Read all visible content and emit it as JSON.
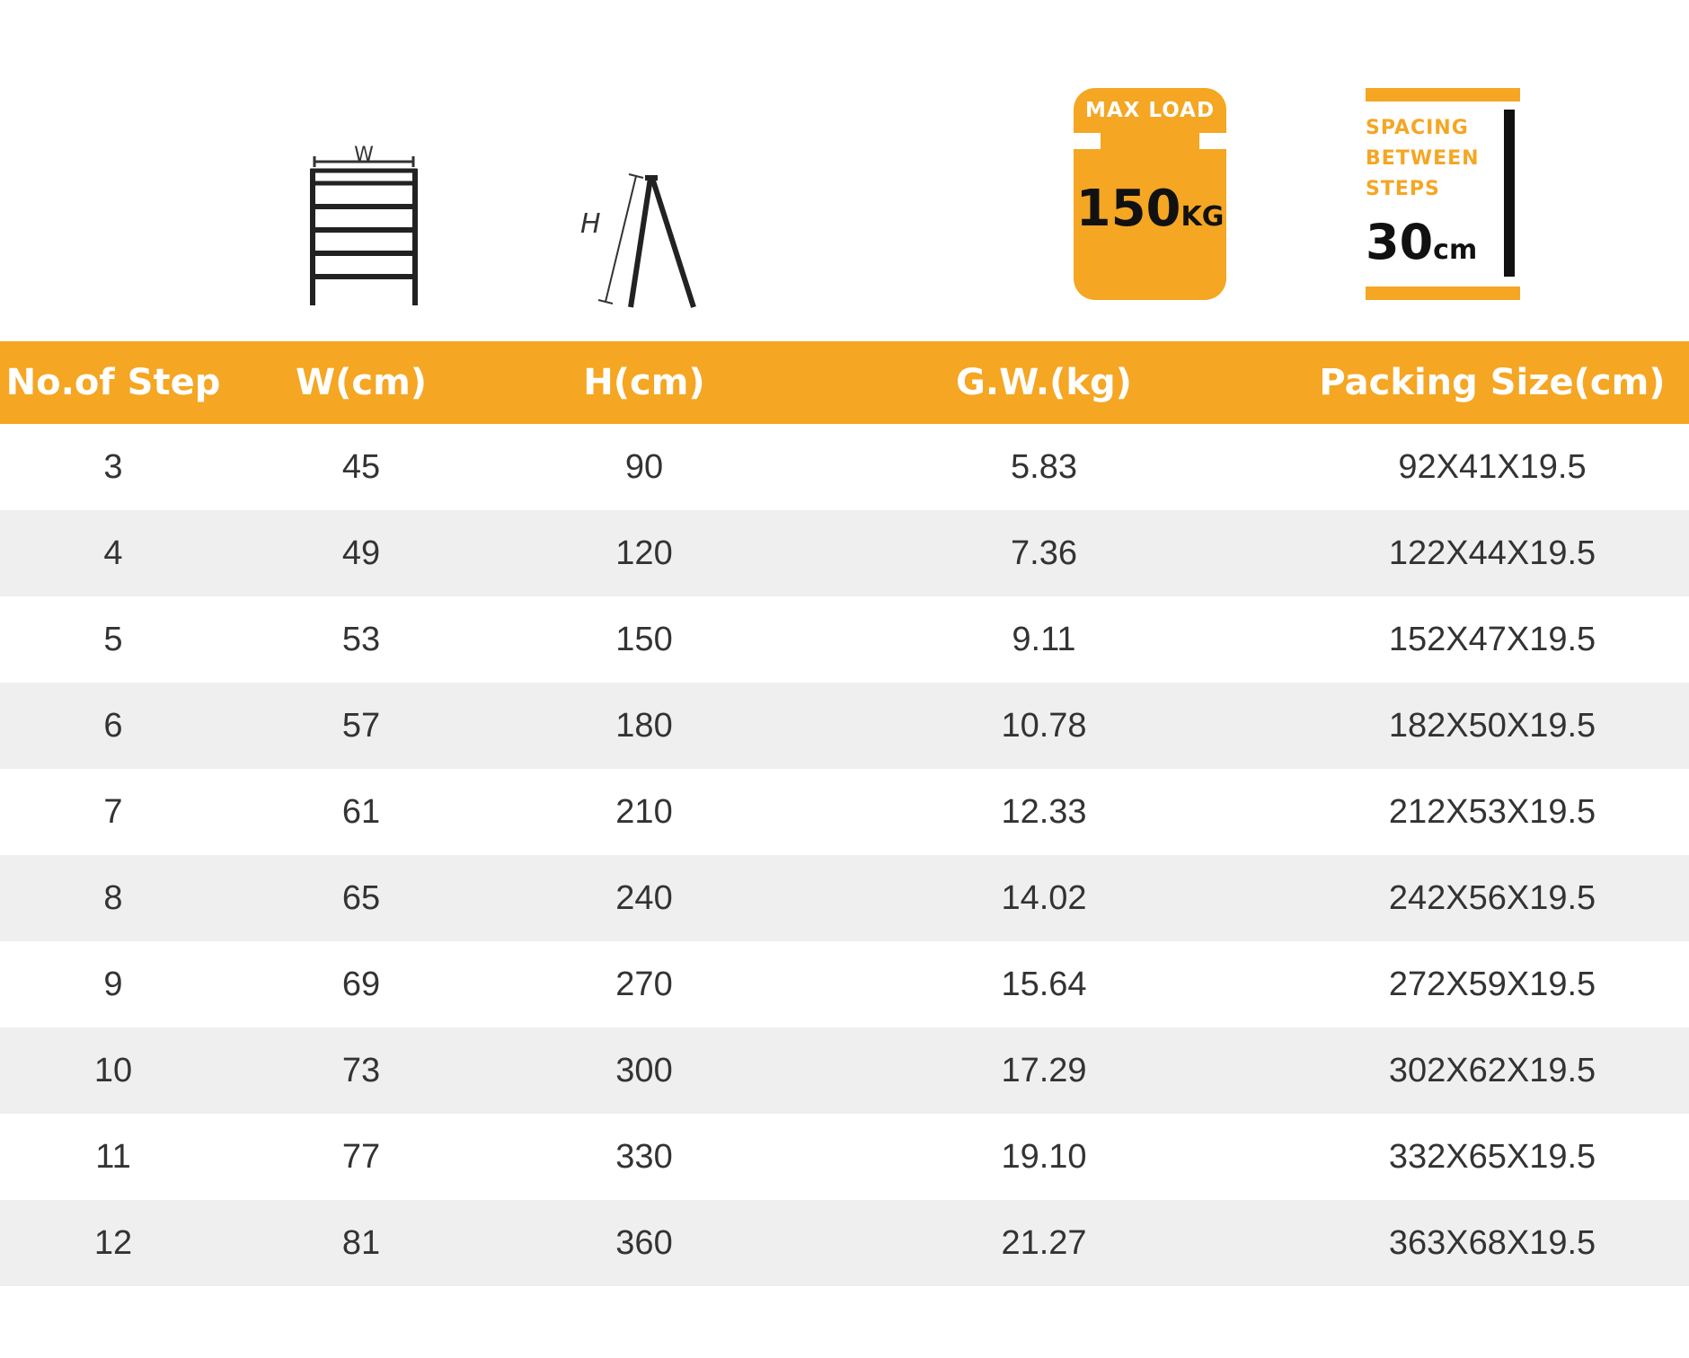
{
  "icons": {
    "width_letter": "W",
    "height_letter": "H"
  },
  "max_load": {
    "title": "MAX LOAD",
    "value": "150",
    "unit": "KG"
  },
  "spacing": {
    "line1": "SPACING",
    "line2": "BETWEEN",
    "line3": "STEPS",
    "value": "30",
    "unit": "cm"
  },
  "table": {
    "headers": [
      "No.of Step",
      "W(cm)",
      "H(cm)",
      "G.W.(kg)",
      "Packing Size(cm)"
    ],
    "rows": [
      [
        "3",
        "45",
        "90",
        "5.83",
        "92X41X19.5"
      ],
      [
        "4",
        "49",
        "120",
        "7.36",
        "122X44X19.5"
      ],
      [
        "5",
        "53",
        "150",
        "9.11",
        "152X47X19.5"
      ],
      [
        "6",
        "57",
        "180",
        "10.78",
        "182X50X19.5"
      ],
      [
        "7",
        "61",
        "210",
        "12.33",
        "212X53X19.5"
      ],
      [
        "8",
        "65",
        "240",
        "14.02",
        "242X56X19.5"
      ],
      [
        "9",
        "69",
        "270",
        "15.64",
        "272X59X19.5"
      ],
      [
        "10",
        "73",
        "300",
        "17.29",
        "302X62X19.5"
      ],
      [
        "11",
        "77",
        "330",
        "19.10",
        "332X65X19.5"
      ],
      [
        "12",
        "81",
        "360",
        "21.27",
        "363X68X19.5"
      ]
    ]
  }
}
